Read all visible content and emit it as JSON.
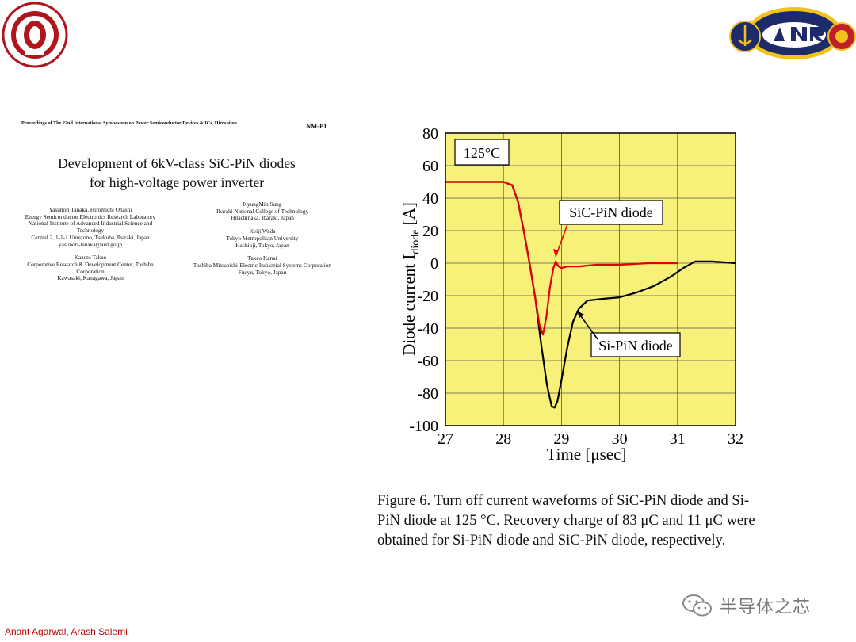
{
  "logos": {
    "left": "osu-seal",
    "right": "onr-seal"
  },
  "paper": {
    "proceedings": "Proceedings of The 22nd International Symposium on Power Semiconductor Devices & ICs, Hiroshima",
    "code": "NM-P1",
    "title_line1": "Development of 6kV-class SiC-PiN diodes",
    "title_line2": "for high-voltage power inverter",
    "affil_left": {
      "authors": "Yasunori Tanaka, Hiromichi Ohashi",
      "line1": "Energy Semiconductor Electronics Research Laboratory",
      "line2": "National Institute of Advanced Industrial Science and",
      "line3": "Technology",
      "line4": "Central 2, 1-1-1 Umezono, Tsukuba, Ibaraki, Japan",
      "line5": "yasunori-tanaka@aist.go.jp",
      "author2": "Kazuto Takao",
      "line6": "Corporative Research & Development Center, Toshiba",
      "line7": "Corporation",
      "line8": "Kawasaki, Kanagawa, Japan"
    },
    "affil_right": {
      "author1": "KyungMin Sung",
      "line1": "Ibaraki National College of Technology",
      "line2": "Hitachinaka, Ibaraki, Japan",
      "author2": "Keiji Wada",
      "line3": "Tokyo Metropolitan University",
      "line4": "Hachioji, Tokyo, Japan",
      "author3": "Takeo Kanai",
      "line5": "Toshiba Mitsubishi-Electric Industrial Systems Corporation",
      "line6": "Fucyu, Tokyo, Japan"
    }
  },
  "chart_data": {
    "type": "line",
    "xlabel": "Time [μsec]",
    "ylabel_main": "Diode current I",
    "ylabel_sub": "diode",
    "ylabel_unit": " [A]",
    "xlim": [
      27,
      32
    ],
    "ylim": [
      -100,
      80
    ],
    "xticks": [
      27,
      28,
      29,
      30,
      31,
      32
    ],
    "yticks": [
      -100,
      -80,
      -60,
      -40,
      -20,
      0,
      20,
      40,
      60,
      80
    ],
    "grid": true,
    "background": "#f7f17a",
    "annotation_temp": "125°C",
    "series": [
      {
        "name": "SiC-PiN diode",
        "color": "#e00000",
        "x": [
          27.0,
          27.5,
          28.0,
          28.15,
          28.25,
          28.35,
          28.45,
          28.55,
          28.62,
          28.68,
          28.74,
          28.8,
          28.86,
          28.9,
          28.95,
          29.0,
          29.1,
          29.3,
          29.6,
          30.0,
          30.5,
          31.0
        ],
        "y": [
          50,
          50,
          50,
          48,
          38,
          20,
          0,
          -22,
          -38,
          -44,
          -33,
          -15,
          -3,
          1,
          -2,
          -3,
          -2,
          -2,
          -1,
          -1,
          0,
          0
        ]
      },
      {
        "name": "Si-PiN diode",
        "color": "#000000",
        "x": [
          27.0,
          27.5,
          28.0,
          28.15,
          28.25,
          28.35,
          28.45,
          28.55,
          28.65,
          28.75,
          28.83,
          28.88,
          28.93,
          29.0,
          29.1,
          29.2,
          29.3,
          29.45,
          29.7,
          30.0,
          30.3,
          30.6,
          30.9,
          31.1,
          31.3,
          31.6,
          32.0
        ],
        "y": [
          50,
          50,
          50,
          48,
          38,
          20,
          0,
          -22,
          -50,
          -75,
          -88,
          -89,
          -85,
          -72,
          -52,
          -36,
          -28,
          -23,
          -22,
          -21,
          -18,
          -14,
          -8,
          -3,
          1,
          1,
          0
        ]
      }
    ],
    "labels": {
      "sic": "SiC-PiN diode",
      "si": "Si-PiN diode"
    }
  },
  "caption": {
    "line1": "Figure 6.  Turn off current waveforms of SiC-PiN diode and Si-",
    "line2": "PiN diode at 125 °C. Recovery charge of 83 μC and 11 μC were",
    "line3": "obtained for Si-PiN diode and SiC-PiN diode, respectively."
  },
  "footer": {
    "authors": "Anant Agarwal, Arash Salemi",
    "watermark": "半导体之芯",
    "watermark_icon": "wechat-icon"
  }
}
